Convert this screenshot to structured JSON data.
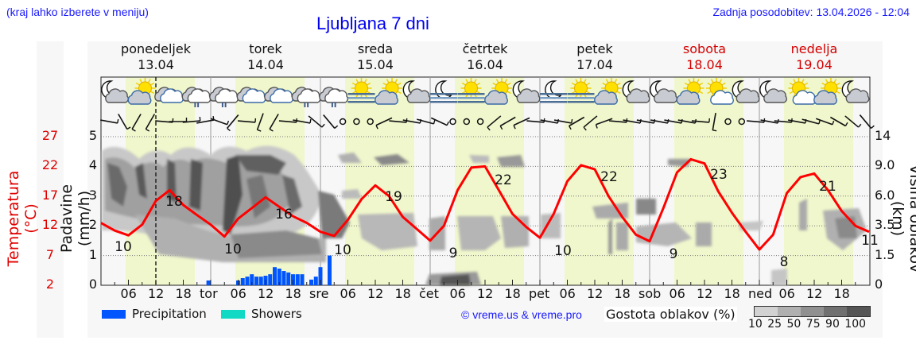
{
  "header": {
    "note": "(kraj lahko izberete v meniju)",
    "title": "Ljubljana 7 dni",
    "updated": "Zadnja posodobitev: 13.04.2026 - 12:04"
  },
  "days": [
    {
      "name": "ponedeljek",
      "date": "13.04",
      "weekend": false
    },
    {
      "name": "torek",
      "date": "14.04",
      "weekend": false
    },
    {
      "name": "sreda",
      "date": "15.04",
      "weekend": false
    },
    {
      "name": "četrtek",
      "date": "16.04",
      "weekend": false
    },
    {
      "name": "petek",
      "date": "17.04",
      "weekend": false
    },
    {
      "name": "sobota",
      "date": "18.04",
      "weekend": true
    },
    {
      "name": "nedelja",
      "date": "19.04",
      "weekend": true
    }
  ],
  "axes": {
    "temp_label": "Temperatura (°C)",
    "precip_label": "Padavine (mm/h)",
    "cloud_label": "Višina oblakov (km)",
    "temp_ticks": [
      "27",
      "22",
      "17",
      "12",
      "7",
      "2"
    ],
    "precip_ticks": [
      "5",
      "4",
      "3",
      "2",
      "1",
      "0"
    ],
    "cloud_ticks": [
      "14",
      "9.0",
      "6.0",
      "3.5",
      "1.5",
      "0"
    ],
    "x_ticks": [
      "06",
      "12",
      "18",
      "tor",
      "06",
      "12",
      "18",
      "sre",
      "06",
      "12",
      "18",
      "čet",
      "06",
      "12",
      "18",
      "pet",
      "06",
      "12",
      "18",
      "sob",
      "06",
      "12",
      "18",
      "ned",
      "06",
      "12",
      "18"
    ]
  },
  "legend": {
    "precipitation": "Precipitation",
    "showers": "Showers",
    "precip_color": "#0055ff",
    "showers_color": "#11d9c4",
    "copyright": "© vreme.us & vreme.pro",
    "density_label": "Gostota oblakov (%)",
    "density_ticks": "10 25 50 75 90 100",
    "density_colors": [
      "#d2d2d2",
      "#b0b0b0",
      "#909090",
      "#707070",
      "#555555"
    ]
  },
  "colors": {
    "temp_line": "#ff0000",
    "daylight": "#f0f7cc",
    "night": "#f7f7f7",
    "weekend_text": "#d40000",
    "link_blue": "#1a1aff"
  },
  "chart_data": {
    "type": "line",
    "title": "Ljubljana 7 dni",
    "xlabel": "",
    "ylabel": "Padavine (mm/h)",
    "ylabel_left_secondary": "Temperatura (°C)",
    "ylabel_right": "Višina oblakov (km)",
    "ylim_precip": [
      0,
      5
    ],
    "ylim_temp": [
      2,
      27
    ],
    "grid": true,
    "current_time_marker": "13.04 12:00",
    "series": [
      {
        "name": "Temperatura (°C)",
        "color": "#ff0000",
        "x_hours": [
          0,
          3,
          6,
          9,
          12,
          15,
          18,
          21,
          24,
          27,
          30,
          33,
          36,
          39,
          42,
          45,
          48,
          51,
          54,
          57,
          60,
          63,
          66,
          69,
          72,
          75,
          78,
          81,
          84,
          87,
          90,
          93,
          96,
          99,
          102,
          105,
          108,
          111,
          114,
          117,
          120,
          123,
          126,
          129,
          132,
          135,
          138,
          141,
          144,
          147,
          150,
          153,
          156,
          159,
          162,
          165,
          168
        ],
        "values": [
          12.5,
          11.2,
          10.4,
          12.2,
          16.2,
          18.0,
          15.5,
          13.8,
          12.2,
          10.2,
          13.2,
          15.0,
          16.8,
          15.2,
          13.6,
          12.5,
          11.0,
          10.3,
          13.0,
          16.5,
          18.8,
          17.0,
          13.5,
          11.5,
          9.5,
          12.0,
          18.0,
          21.8,
          22.0,
          18.0,
          14.0,
          11.8,
          10.0,
          14.0,
          19.5,
          22.2,
          21.5,
          17.0,
          13.5,
          10.5,
          9.4,
          15.0,
          21.0,
          23.2,
          22.5,
          17.8,
          14.2,
          11.0,
          8.0,
          10.5,
          17.5,
          20.2,
          20.8,
          18.0,
          14.5,
          12.0,
          11.0
        ]
      },
      {
        "name": "Precipitation (mm/h)",
        "color": "#0055ff",
        "x_hours": [
          23.5,
          30,
          31,
          32,
          33,
          34,
          35,
          36,
          37,
          38,
          39,
          40,
          41,
          42,
          43,
          44,
          46,
          47,
          48,
          50
        ],
        "values": [
          0.16,
          0.16,
          0.24,
          0.29,
          0.37,
          0.29,
          0.29,
          0.32,
          0.37,
          0.61,
          0.56,
          0.48,
          0.43,
          0.37,
          0.37,
          0.37,
          0.19,
          0.29,
          0.61,
          1.0
        ]
      }
    ],
    "annotations": [
      {
        "label": "10",
        "day": "ponedeljek",
        "type": "min"
      },
      {
        "label": "18",
        "day": "ponedeljek",
        "type": "max"
      },
      {
        "label": "10",
        "day": "torek",
        "type": "min"
      },
      {
        "label": "16",
        "day": "torek",
        "type": "max"
      },
      {
        "label": "10",
        "day": "sreda",
        "type": "min"
      },
      {
        "label": "19",
        "day": "sreda",
        "type": "max"
      },
      {
        "label": "9",
        "day": "četrtek",
        "type": "min"
      },
      {
        "label": "22",
        "day": "četrtek",
        "type": "max"
      },
      {
        "label": "10",
        "day": "petek",
        "type": "min"
      },
      {
        "label": "22",
        "day": "petek",
        "type": "max"
      },
      {
        "label": "9",
        "day": "sobota",
        "type": "min"
      },
      {
        "label": "23",
        "day": "sobota",
        "type": "max"
      },
      {
        "label": "8",
        "day": "nedelja",
        "type": "min"
      },
      {
        "label": "21",
        "day": "nedelja",
        "type": "max"
      },
      {
        "label": "11",
        "day": "nedelja",
        "type": "end"
      }
    ],
    "weather_icons": [
      "moon-cloud",
      "sun-cloud",
      "cloud",
      "cloud-rain",
      "cloud-rain",
      "cloud",
      "cloud",
      "cloud-rain",
      "cloud-rain",
      "sun-fog",
      "sun-cloud",
      "moon-cloud",
      "moon-fog",
      "sun-fog",
      "sun-cloud",
      "moon-cloud",
      "moon-fog",
      "sun-fog",
      "sun-cloud",
      "moon-cloud",
      "moon-cloud",
      "sun-cloud",
      "sun-small-cloud",
      "moon-cloud",
      "moon-cloud",
      "sun-small-cloud",
      "sun-cloud",
      "moon-cloud"
    ]
  }
}
